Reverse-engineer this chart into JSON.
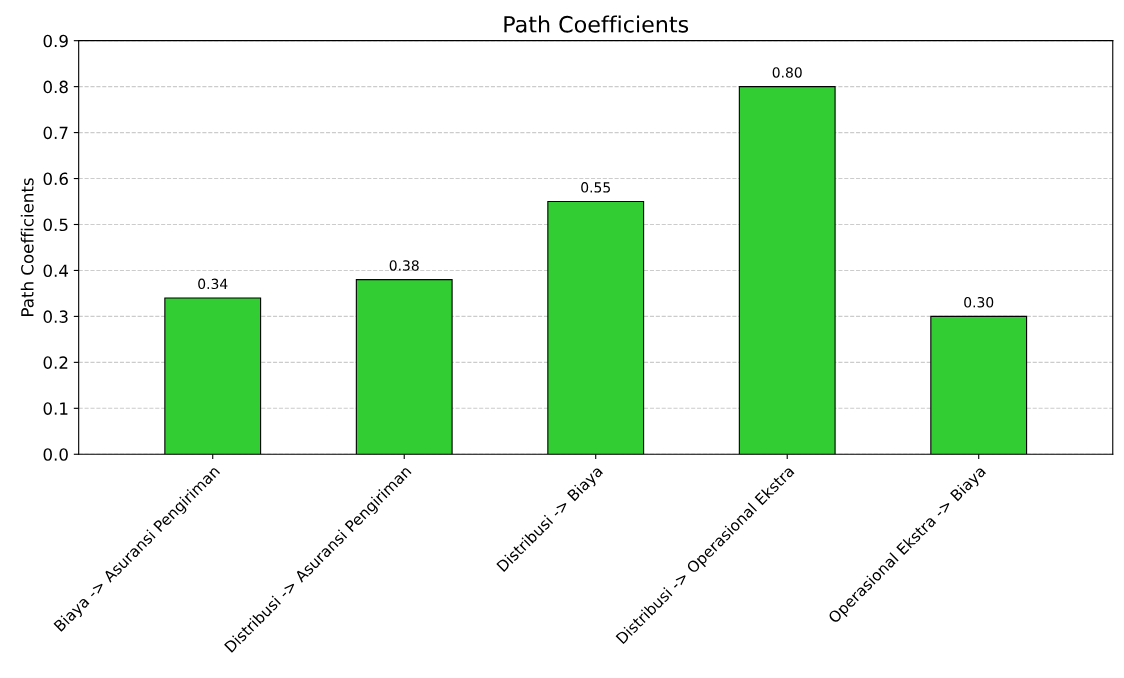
{
  "chart_data": {
    "type": "bar",
    "title": "Path Coefficients",
    "ylabel": "Path Coefficients",
    "categories": [
      "Biaya -> Asuransi Pengiriman",
      "Distribusi -> Asuransi Pengiriman",
      "Distribusi -> Biaya",
      "Distribusi -> Operasional Ekstra",
      "Operasional Ekstra -> Biaya"
    ],
    "values": [
      0.34,
      0.38,
      0.55,
      0.8,
      0.3
    ],
    "value_labels": [
      "0.34",
      "0.38",
      "0.55",
      "0.80",
      "0.30"
    ],
    "color": "#32cd32",
    "ylim": [
      0,
      0.9
    ],
    "yticks": [
      {
        "value": 0,
        "label": "0.0"
      },
      {
        "value": 0.1,
        "label": "0.1"
      },
      {
        "value": 0.2,
        "label": "0.2"
      },
      {
        "value": 0.3,
        "label": "0.3"
      },
      {
        "value": 0.4,
        "label": "0.4"
      },
      {
        "value": 0.5,
        "label": "0.5"
      },
      {
        "value": 0.6,
        "label": "0.6"
      },
      {
        "value": 0.7,
        "label": "0.7"
      },
      {
        "value": 0.8,
        "label": "0.8"
      },
      {
        "value": 0.9,
        "label": "0.9"
      }
    ],
    "grid": "y"
  }
}
